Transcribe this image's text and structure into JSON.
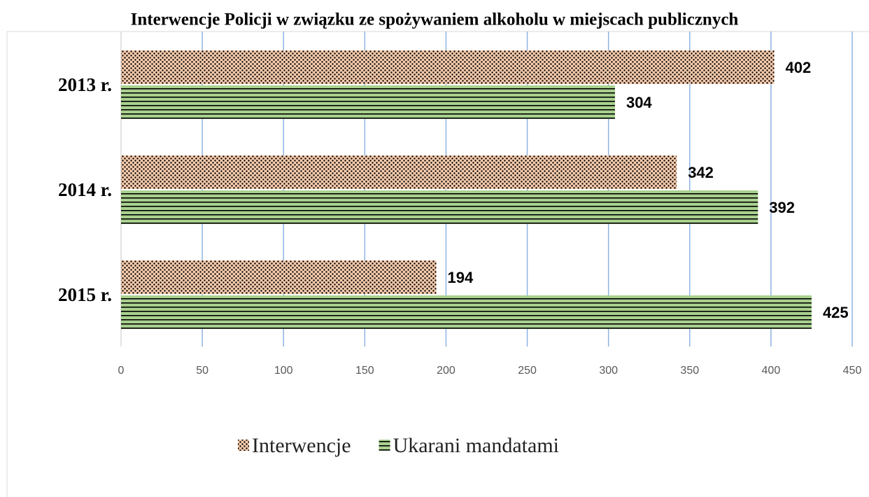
{
  "chart_data": {
    "type": "barh",
    "title": "Interwencje Policji w związku ze spożywaniem alkoholu w miejscach publicznych",
    "categories": [
      "2013 r.",
      "2014 r.",
      "2015 r."
    ],
    "series": [
      {
        "name": "Interwencje",
        "color": "#f8cbad",
        "pattern": "dots",
        "values": [
          402,
          342,
          194
        ]
      },
      {
        "name": "Ukarani mandatami",
        "color": "#a9d18e",
        "pattern": "hlines",
        "values": [
          304,
          392,
          425
        ]
      }
    ],
    "xlim": [
      0,
      450
    ],
    "xticks": [
      0,
      50,
      100,
      150,
      200,
      250,
      300,
      350,
      400,
      450
    ],
    "grid": true,
    "legend": "bottom"
  }
}
